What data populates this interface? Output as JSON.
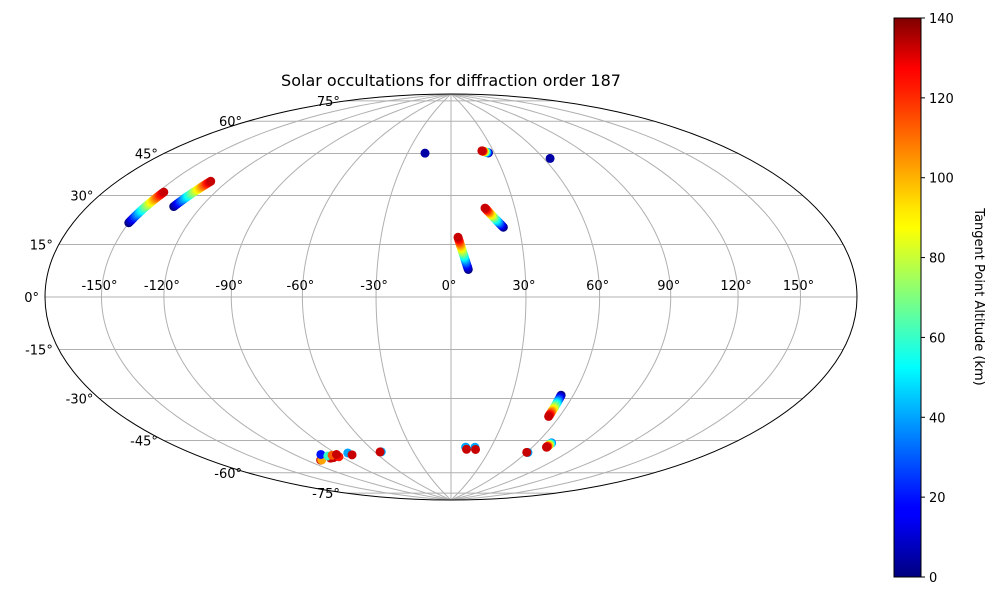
{
  "chart_data": {
    "type": "scatter",
    "projection": "aitoff-hammer (elliptical)",
    "title": "Solar occultations for diffraction order 187",
    "xlabel": "",
    "ylabel": "",
    "xlim": [
      -180,
      180
    ],
    "ylim": [
      -90,
      90
    ],
    "grid": true,
    "longitude_ticks": [
      {
        "value": -150,
        "label": "-150°"
      },
      {
        "value": -120,
        "label": "-120°"
      },
      {
        "value": -90,
        "label": "-90°"
      },
      {
        "value": -60,
        "label": "-60°"
      },
      {
        "value": -30,
        "label": "-30°"
      },
      {
        "value": 0,
        "label": "0°"
      },
      {
        "value": 30,
        "label": "30°"
      },
      {
        "value": 60,
        "label": "60°"
      },
      {
        "value": 90,
        "label": "90°"
      },
      {
        "value": 120,
        "label": "120°"
      },
      {
        "value": 150,
        "label": "150°"
      }
    ],
    "latitude_ticks": [
      {
        "value": 75,
        "label": "75°"
      },
      {
        "value": 60,
        "label": "60°"
      },
      {
        "value": 45,
        "label": "45°"
      },
      {
        "value": 30,
        "label": "30°"
      },
      {
        "value": 15,
        "label": "15°"
      },
      {
        "value": 0,
        "label": "0°"
      },
      {
        "value": -15,
        "label": "-15°"
      },
      {
        "value": -30,
        "label": "-30°"
      },
      {
        "value": -45,
        "label": "-45°"
      },
      {
        "value": -60,
        "label": "-60°"
      },
      {
        "value": -75,
        "label": "-75°"
      }
    ],
    "colorbar": {
      "label": "Tangent Point Altitude (km)",
      "range": [
        0,
        140
      ],
      "colormap": "jet",
      "ticks": [
        {
          "value": 0,
          "label": "0"
        },
        {
          "value": 20,
          "label": "20"
        },
        {
          "value": 40,
          "label": "40"
        },
        {
          "value": 60,
          "label": "60"
        },
        {
          "value": 80,
          "label": "80"
        },
        {
          "value": 100,
          "label": "100"
        },
        {
          "value": 120,
          "label": "120"
        },
        {
          "value": 140,
          "label": "140"
        }
      ]
    },
    "tracks": [
      {
        "start": {
          "lon": -150,
          "lat": 24
        },
        "end": {
          "lon": -147,
          "lat": 35
        },
        "alt_start": 0,
        "alt_end": 130
      },
      {
        "start": {
          "lon": -134,
          "lat": 31
        },
        "end": {
          "lon": -129,
          "lat": 41
        },
        "alt_start": 0,
        "alt_end": 130
      },
      {
        "start": {
          "lon": 7,
          "lat": 11
        },
        "end": {
          "lon": 3,
          "lat": 24
        },
        "alt_start": 0,
        "alt_end": 130
      },
      {
        "start": {
          "lon": 23,
          "lat": 28
        },
        "end": {
          "lon": 16,
          "lat": 36
        },
        "alt_start": 0,
        "alt_end": 130
      },
      {
        "start": {
          "lon": 26,
          "lat": 60
        },
        "end": {
          "lon": 22,
          "lat": 61
        },
        "alt_start": 0,
        "alt_end": 130
      },
      {
        "start": {
          "lon": 54,
          "lat": -39
        },
        "end": {
          "lon": 54,
          "lat": -48
        },
        "alt_start": 0,
        "alt_end": 130
      },
      {
        "start": {
          "lon": 70,
          "lat": -59
        },
        "end": {
          "lon": 70,
          "lat": -61
        },
        "alt_start": 30,
        "alt_end": 130
      }
    ],
    "points": [
      {
        "lon": -18,
        "lat": 60,
        "alt": 5
      },
      {
        "lon": 64,
        "lat": 56,
        "alt": 5
      },
      {
        "lon": -110,
        "lat": -64,
        "alt": 130
      },
      {
        "lon": -109,
        "lat": -64,
        "alt": 100
      },
      {
        "lon": -102,
        "lat": -62,
        "alt": 20
      },
      {
        "lon": -100,
        "lat": -64,
        "alt": 130
      },
      {
        "lon": -99,
        "lat": -63,
        "alt": 60
      },
      {
        "lon": -97,
        "lat": -64,
        "alt": 130
      },
      {
        "lon": -95,
        "lat": -63,
        "alt": 110
      },
      {
        "lon": -92,
        "lat": -64,
        "alt": 120
      },
      {
        "lon": -91,
        "lat": -63,
        "alt": 130
      },
      {
        "lon": -81,
        "lat": -63,
        "alt": 40
      },
      {
        "lon": -80,
        "lat": -64,
        "alt": 130
      },
      {
        "lon": -55,
        "lat": -64,
        "alt": 40
      },
      {
        "lon": -56,
        "lat": -64,
        "alt": 130
      },
      {
        "lon": 11,
        "lat": -63,
        "alt": 40
      },
      {
        "lon": 12,
        "lat": -64,
        "alt": 130
      },
      {
        "lon": 18,
        "lat": -63,
        "alt": 40
      },
      {
        "lon": 19,
        "lat": -64,
        "alt": 130
      },
      {
        "lon": 61,
        "lat": -64,
        "alt": 40
      },
      {
        "lon": 60,
        "lat": -64,
        "alt": 130
      }
    ]
  }
}
